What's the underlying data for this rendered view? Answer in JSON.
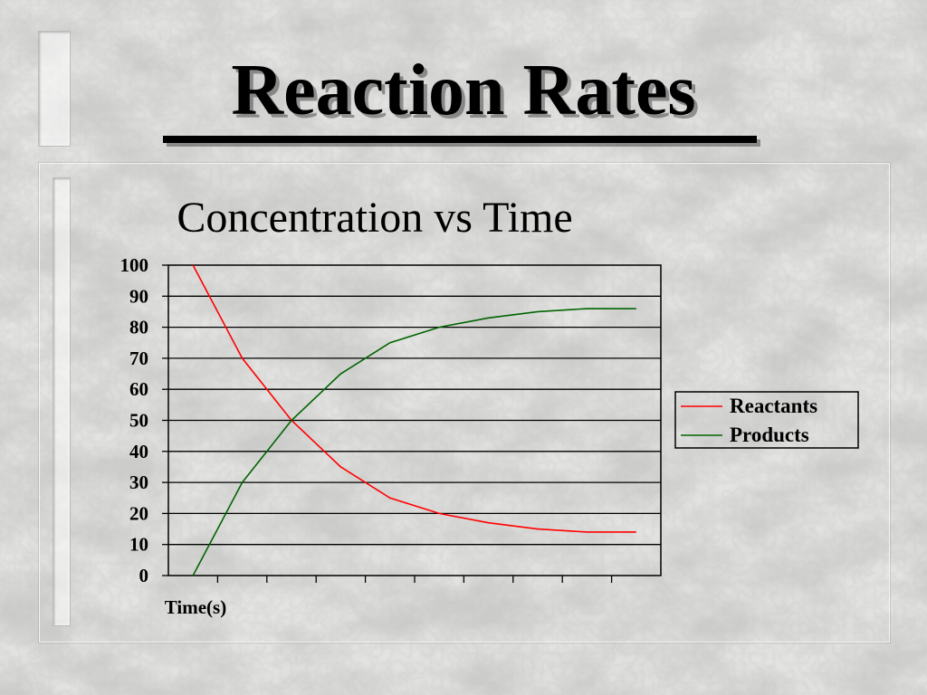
{
  "slide": {
    "title": "Reaction Rates"
  },
  "chart_data": {
    "type": "line",
    "title": "Concentration vs Time",
    "xlabel": "Time(s)",
    "ylabel": "",
    "ylim": [
      0,
      100
    ],
    "yticks": [
      "0",
      "10",
      "20",
      "30",
      "40",
      "50",
      "60",
      "70",
      "80",
      "90",
      "100"
    ],
    "x": [
      0,
      1,
      2,
      3,
      4,
      5,
      6,
      7,
      8,
      9
    ],
    "xlim": [
      -0.5,
      9.5
    ],
    "grid": true,
    "legend_position": "right",
    "series": [
      {
        "name": "Reactants",
        "color": "#ff0000",
        "values": [
          100,
          70,
          50,
          35,
          25,
          20,
          17,
          15,
          14,
          14
        ]
      },
      {
        "name": "Products",
        "color": "#006400",
        "values": [
          0,
          30,
          50,
          65,
          75,
          80,
          83,
          85,
          86,
          86
        ]
      }
    ]
  }
}
